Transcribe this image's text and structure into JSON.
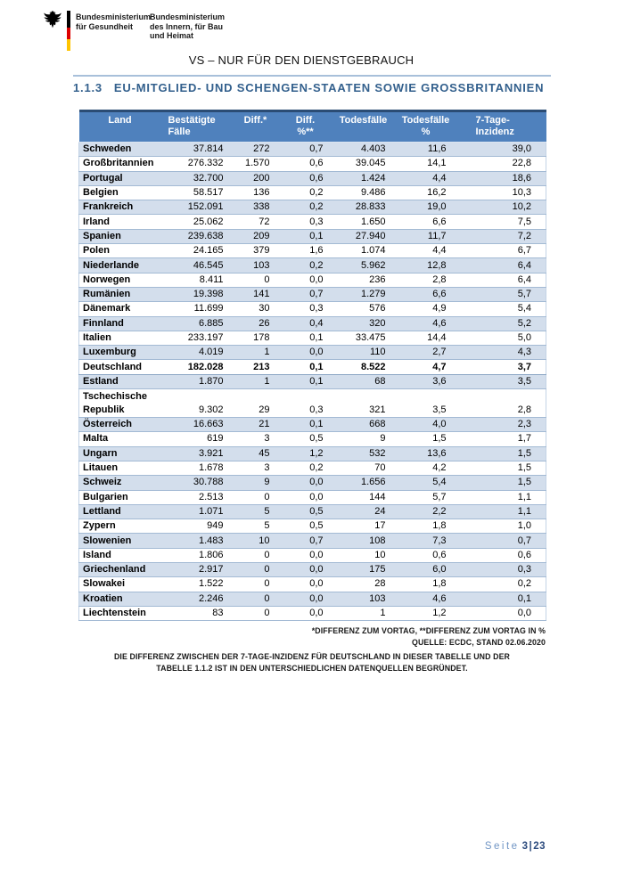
{
  "header": {
    "ministry_health": [
      "Bundesministerium",
      "für Gesundheit"
    ],
    "ministry_interior": [
      "Bundesministerium",
      "des Innern, für Bau",
      "und Heimat"
    ],
    "classification": "VS – NUR FÜR DEN DIENSTGEBRAUCH"
  },
  "section": {
    "number": "1.1.3",
    "title": "EU-MITGLIED- UND SCHENGEN-STAATEN SOWIE GROSSBRITANNIEN"
  },
  "table": {
    "columns": [
      {
        "lines": [
          "Land"
        ]
      },
      {
        "lines": [
          "Bestätigte",
          "Fälle"
        ]
      },
      {
        "lines": [
          "Diff.*"
        ]
      },
      {
        "lines": [
          "Diff.",
          "%**"
        ]
      },
      {
        "lines": [
          "Todesfälle"
        ]
      },
      {
        "lines": [
          "Todesfälle",
          "%"
        ]
      },
      {
        "lines": [
          "7-Tage-",
          "Inzidenz"
        ]
      }
    ],
    "rows": [
      {
        "land": "Schweden",
        "cases": "37.814",
        "diff": "272",
        "diff_pct": "0,7",
        "deaths": "4.403",
        "deaths_pct": "11,6",
        "incidence": "39,0"
      },
      {
        "land": "Großbritannien",
        "cases": "276.332",
        "diff": "1.570",
        "diff_pct": "0,6",
        "deaths": "39.045",
        "deaths_pct": "14,1",
        "incidence": "22,8"
      },
      {
        "land": "Portugal",
        "cases": "32.700",
        "diff": "200",
        "diff_pct": "0,6",
        "deaths": "1.424",
        "deaths_pct": "4,4",
        "incidence": "18,6"
      },
      {
        "land": "Belgien",
        "cases": "58.517",
        "diff": "136",
        "diff_pct": "0,2",
        "deaths": "9.486",
        "deaths_pct": "16,2",
        "incidence": "10,3"
      },
      {
        "land": "Frankreich",
        "cases": "152.091",
        "diff": "338",
        "diff_pct": "0,2",
        "deaths": "28.833",
        "deaths_pct": "19,0",
        "incidence": "10,2"
      },
      {
        "land": "Irland",
        "cases": "25.062",
        "diff": "72",
        "diff_pct": "0,3",
        "deaths": "1.650",
        "deaths_pct": "6,6",
        "incidence": "7,5"
      },
      {
        "land": "Spanien",
        "cases": "239.638",
        "diff": "209",
        "diff_pct": "0,1",
        "deaths": "27.940",
        "deaths_pct": "11,7",
        "incidence": "7,2"
      },
      {
        "land": "Polen",
        "cases": "24.165",
        "diff": "379",
        "diff_pct": "1,6",
        "deaths": "1.074",
        "deaths_pct": "4,4",
        "incidence": "6,7"
      },
      {
        "land": "Niederlande",
        "cases": "46.545",
        "diff": "103",
        "diff_pct": "0,2",
        "deaths": "5.962",
        "deaths_pct": "12,8",
        "incidence": "6,4"
      },
      {
        "land": "Norwegen",
        "cases": "8.411",
        "diff": "0",
        "diff_pct": "0,0",
        "deaths": "236",
        "deaths_pct": "2,8",
        "incidence": "6,4"
      },
      {
        "land": "Rumänien",
        "cases": "19.398",
        "diff": "141",
        "diff_pct": "0,7",
        "deaths": "1.279",
        "deaths_pct": "6,6",
        "incidence": "5,7"
      },
      {
        "land": "Dänemark",
        "cases": "11.699",
        "diff": "30",
        "diff_pct": "0,3",
        "deaths": "576",
        "deaths_pct": "4,9",
        "incidence": "5,4"
      },
      {
        "land": "Finnland",
        "cases": "6.885",
        "diff": "26",
        "diff_pct": "0,4",
        "deaths": "320",
        "deaths_pct": "4,6",
        "incidence": "5,2"
      },
      {
        "land": "Italien",
        "cases": "233.197",
        "diff": "178",
        "diff_pct": "0,1",
        "deaths": "33.475",
        "deaths_pct": "14,4",
        "incidence": "5,0"
      },
      {
        "land": "Luxemburg",
        "cases": "4.019",
        "diff": "1",
        "diff_pct": "0,0",
        "deaths": "110",
        "deaths_pct": "2,7",
        "incidence": "4,3"
      },
      {
        "land": "Deutschland",
        "cases": "182.028",
        "diff": "213",
        "diff_pct": "0,1",
        "deaths": "8.522",
        "deaths_pct": "4,7",
        "incidence": "3,7",
        "emphasis": true
      },
      {
        "land": "Estland",
        "cases": "1.870",
        "diff": "1",
        "diff_pct": "0,1",
        "deaths": "68",
        "deaths_pct": "3,6",
        "incidence": "3,5"
      },
      {
        "land": "Tschechische Republik",
        "cases": "9.302",
        "diff": "29",
        "diff_pct": "0,3",
        "deaths": "321",
        "deaths_pct": "3,5",
        "incidence": "2,8",
        "tall": true
      },
      {
        "land": "Österreich",
        "cases": "16.663",
        "diff": "21",
        "diff_pct": "0,1",
        "deaths": "668",
        "deaths_pct": "4,0",
        "incidence": "2,3"
      },
      {
        "land": "Malta",
        "cases": "619",
        "diff": "3",
        "diff_pct": "0,5",
        "deaths": "9",
        "deaths_pct": "1,5",
        "incidence": "1,7"
      },
      {
        "land": "Ungarn",
        "cases": "3.921",
        "diff": "45",
        "diff_pct": "1,2",
        "deaths": "532",
        "deaths_pct": "13,6",
        "incidence": "1,5"
      },
      {
        "land": "Litauen",
        "cases": "1.678",
        "diff": "3",
        "diff_pct": "0,2",
        "deaths": "70",
        "deaths_pct": "4,2",
        "incidence": "1,5"
      },
      {
        "land": "Schweiz",
        "cases": "30.788",
        "diff": "9",
        "diff_pct": "0,0",
        "deaths": "1.656",
        "deaths_pct": "5,4",
        "incidence": "1,5"
      },
      {
        "land": "Bulgarien",
        "cases": "2.513",
        "diff": "0",
        "diff_pct": "0,0",
        "deaths": "144",
        "deaths_pct": "5,7",
        "incidence": "1,1"
      },
      {
        "land": "Lettland",
        "cases": "1.071",
        "diff": "5",
        "diff_pct": "0,5",
        "deaths": "24",
        "deaths_pct": "2,2",
        "incidence": "1,1"
      },
      {
        "land": "Zypern",
        "cases": "949",
        "diff": "5",
        "diff_pct": "0,5",
        "deaths": "17",
        "deaths_pct": "1,8",
        "incidence": "1,0"
      },
      {
        "land": "Slowenien",
        "cases": "1.483",
        "diff": "10",
        "diff_pct": "0,7",
        "deaths": "108",
        "deaths_pct": "7,3",
        "incidence": "0,7"
      },
      {
        "land": "Island",
        "cases": "1.806",
        "diff": "0",
        "diff_pct": "0,0",
        "deaths": "10",
        "deaths_pct": "0,6",
        "incidence": "0,6"
      },
      {
        "land": "Griechenland",
        "cases": "2.917",
        "diff": "0",
        "diff_pct": "0,0",
        "deaths": "175",
        "deaths_pct": "6,0",
        "incidence": "0,3"
      },
      {
        "land": "Slowakei",
        "cases": "1.522",
        "diff": "0",
        "diff_pct": "0,0",
        "deaths": "28",
        "deaths_pct": "1,8",
        "incidence": "0,2"
      },
      {
        "land": "Kroatien",
        "cases": "2.246",
        "diff": "0",
        "diff_pct": "0,0",
        "deaths": "103",
        "deaths_pct": "4,6",
        "incidence": "0,1"
      },
      {
        "land": "Liechtenstein",
        "cases": "83",
        "diff": "0",
        "diff_pct": "0,0",
        "deaths": "1",
        "deaths_pct": "1,2",
        "incidence": "0,0"
      }
    ]
  },
  "footnotes": {
    "diff_note": "*DIFFERENZ ZUM VORTAG, **DIFFERENZ ZUM VORTAG IN %",
    "source": "QUELLE: ECDC, STAND 02.06.2020",
    "discrepancy_lines": [
      "DIE DIFFERENZ ZWISCHEN DER 7-TAGE-INZIDENZ FÜR DEUTSCHLAND IN DIESER TABELLE UND DER",
      "TABELLE 1.1.2 IST IN DEN UNTERSCHIEDLICHEN DATENQUELLEN BEGRÜNDET."
    ]
  },
  "footer": {
    "label": "Seite",
    "page": "3",
    "separator": "|",
    "total": "23"
  },
  "colors": {
    "table_header_bg": "#4f81bd",
    "table_header_top_border": "#2b4c74",
    "row_stripe": "#d3deec",
    "row_border": "#a3bad4",
    "heading_blue": "#33608d",
    "footer_label_blue": "#6f94c4",
    "footer_page_blue": "#2b4a7d",
    "flag_black": "#000000",
    "flag_red": "#dd0000",
    "flag_gold": "#ffc400"
  }
}
